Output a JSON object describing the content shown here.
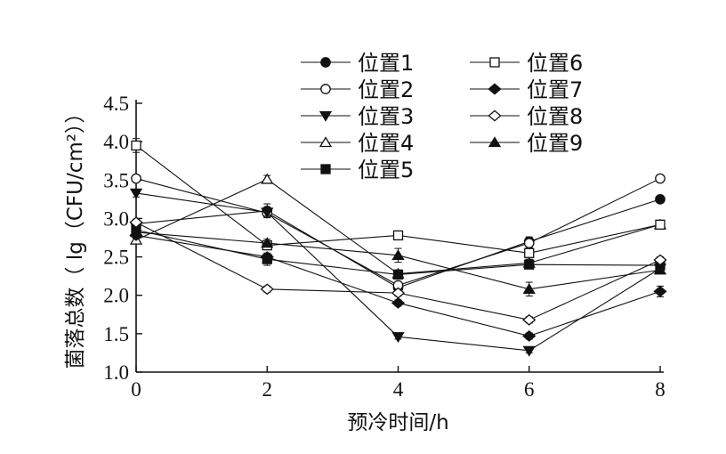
{
  "chart_data": {
    "type": "line",
    "xlabel": "预冷时间/h",
    "ylabel": "菌落总数（ lg（CFU/cm²））",
    "x": [
      0,
      2,
      4,
      6,
      8
    ],
    "x_ticks": [
      "0",
      "2",
      "4",
      "6",
      "8"
    ],
    "xlim": [
      0,
      8
    ],
    "ylim": [
      1.0,
      4.5
    ],
    "y_ticks": [
      "1.0",
      "1.5",
      "2.0",
      "2.5",
      "3.0",
      "3.5",
      "4.0",
      "4.5"
    ],
    "grid": false,
    "legend_position": "top-right",
    "series": [
      {
        "name": "位置1",
        "marker": "circle-filled",
        "values": [
          2.93,
          3.1,
          2.1,
          2.7,
          3.25
        ]
      },
      {
        "name": "位置2",
        "marker": "circle-open",
        "values": [
          3.52,
          3.07,
          2.13,
          2.68,
          3.52
        ]
      },
      {
        "name": "位置3",
        "marker": "triangle-down-filled",
        "values": [
          3.33,
          3.08,
          1.46,
          1.28,
          2.35
        ]
      },
      {
        "name": "位置4",
        "marker": "triangle-up-open",
        "values": [
          2.72,
          3.51,
          2.28,
          2.42,
          2.92
        ]
      },
      {
        "name": "位置5",
        "marker": "square-filled",
        "values": [
          2.85,
          2.47,
          2.27,
          2.4,
          2.39
        ]
      },
      {
        "name": "位置6",
        "marker": "square-open",
        "values": [
          3.95,
          2.65,
          2.78,
          2.55,
          2.92
        ]
      },
      {
        "name": "位置7",
        "marker": "diamond-filled",
        "values": [
          2.78,
          2.5,
          1.9,
          1.47,
          2.05
        ]
      },
      {
        "name": "位置8",
        "marker": "diamond-open",
        "values": [
          2.95,
          2.08,
          2.03,
          1.68,
          2.46
        ]
      },
      {
        "name": "位置9",
        "marker": "triangle-up-filled",
        "values": [
          2.82,
          2.68,
          2.52,
          2.08,
          2.33
        ]
      }
    ],
    "errors": [
      [
        0.06,
        0.09,
        0.04,
        0.06,
        0.04
      ],
      [
        0.04,
        0.05,
        0.04,
        0.06,
        0.04
      ],
      [
        0.05,
        0.05,
        0.03,
        0.03,
        0.04
      ],
      [
        0.05,
        0.05,
        0.05,
        0.05,
        0.05
      ],
      [
        0.05,
        0.08,
        0.05,
        0.05,
        0.04
      ],
      [
        0.09,
        0.05,
        0.04,
        0.05,
        0.05
      ],
      [
        0.04,
        0.04,
        0.04,
        0.04,
        0.07
      ],
      [
        0.04,
        0.04,
        0.04,
        0.04,
        0.04
      ],
      [
        0.05,
        0.05,
        0.09,
        0.09,
        0.05
      ]
    ]
  }
}
